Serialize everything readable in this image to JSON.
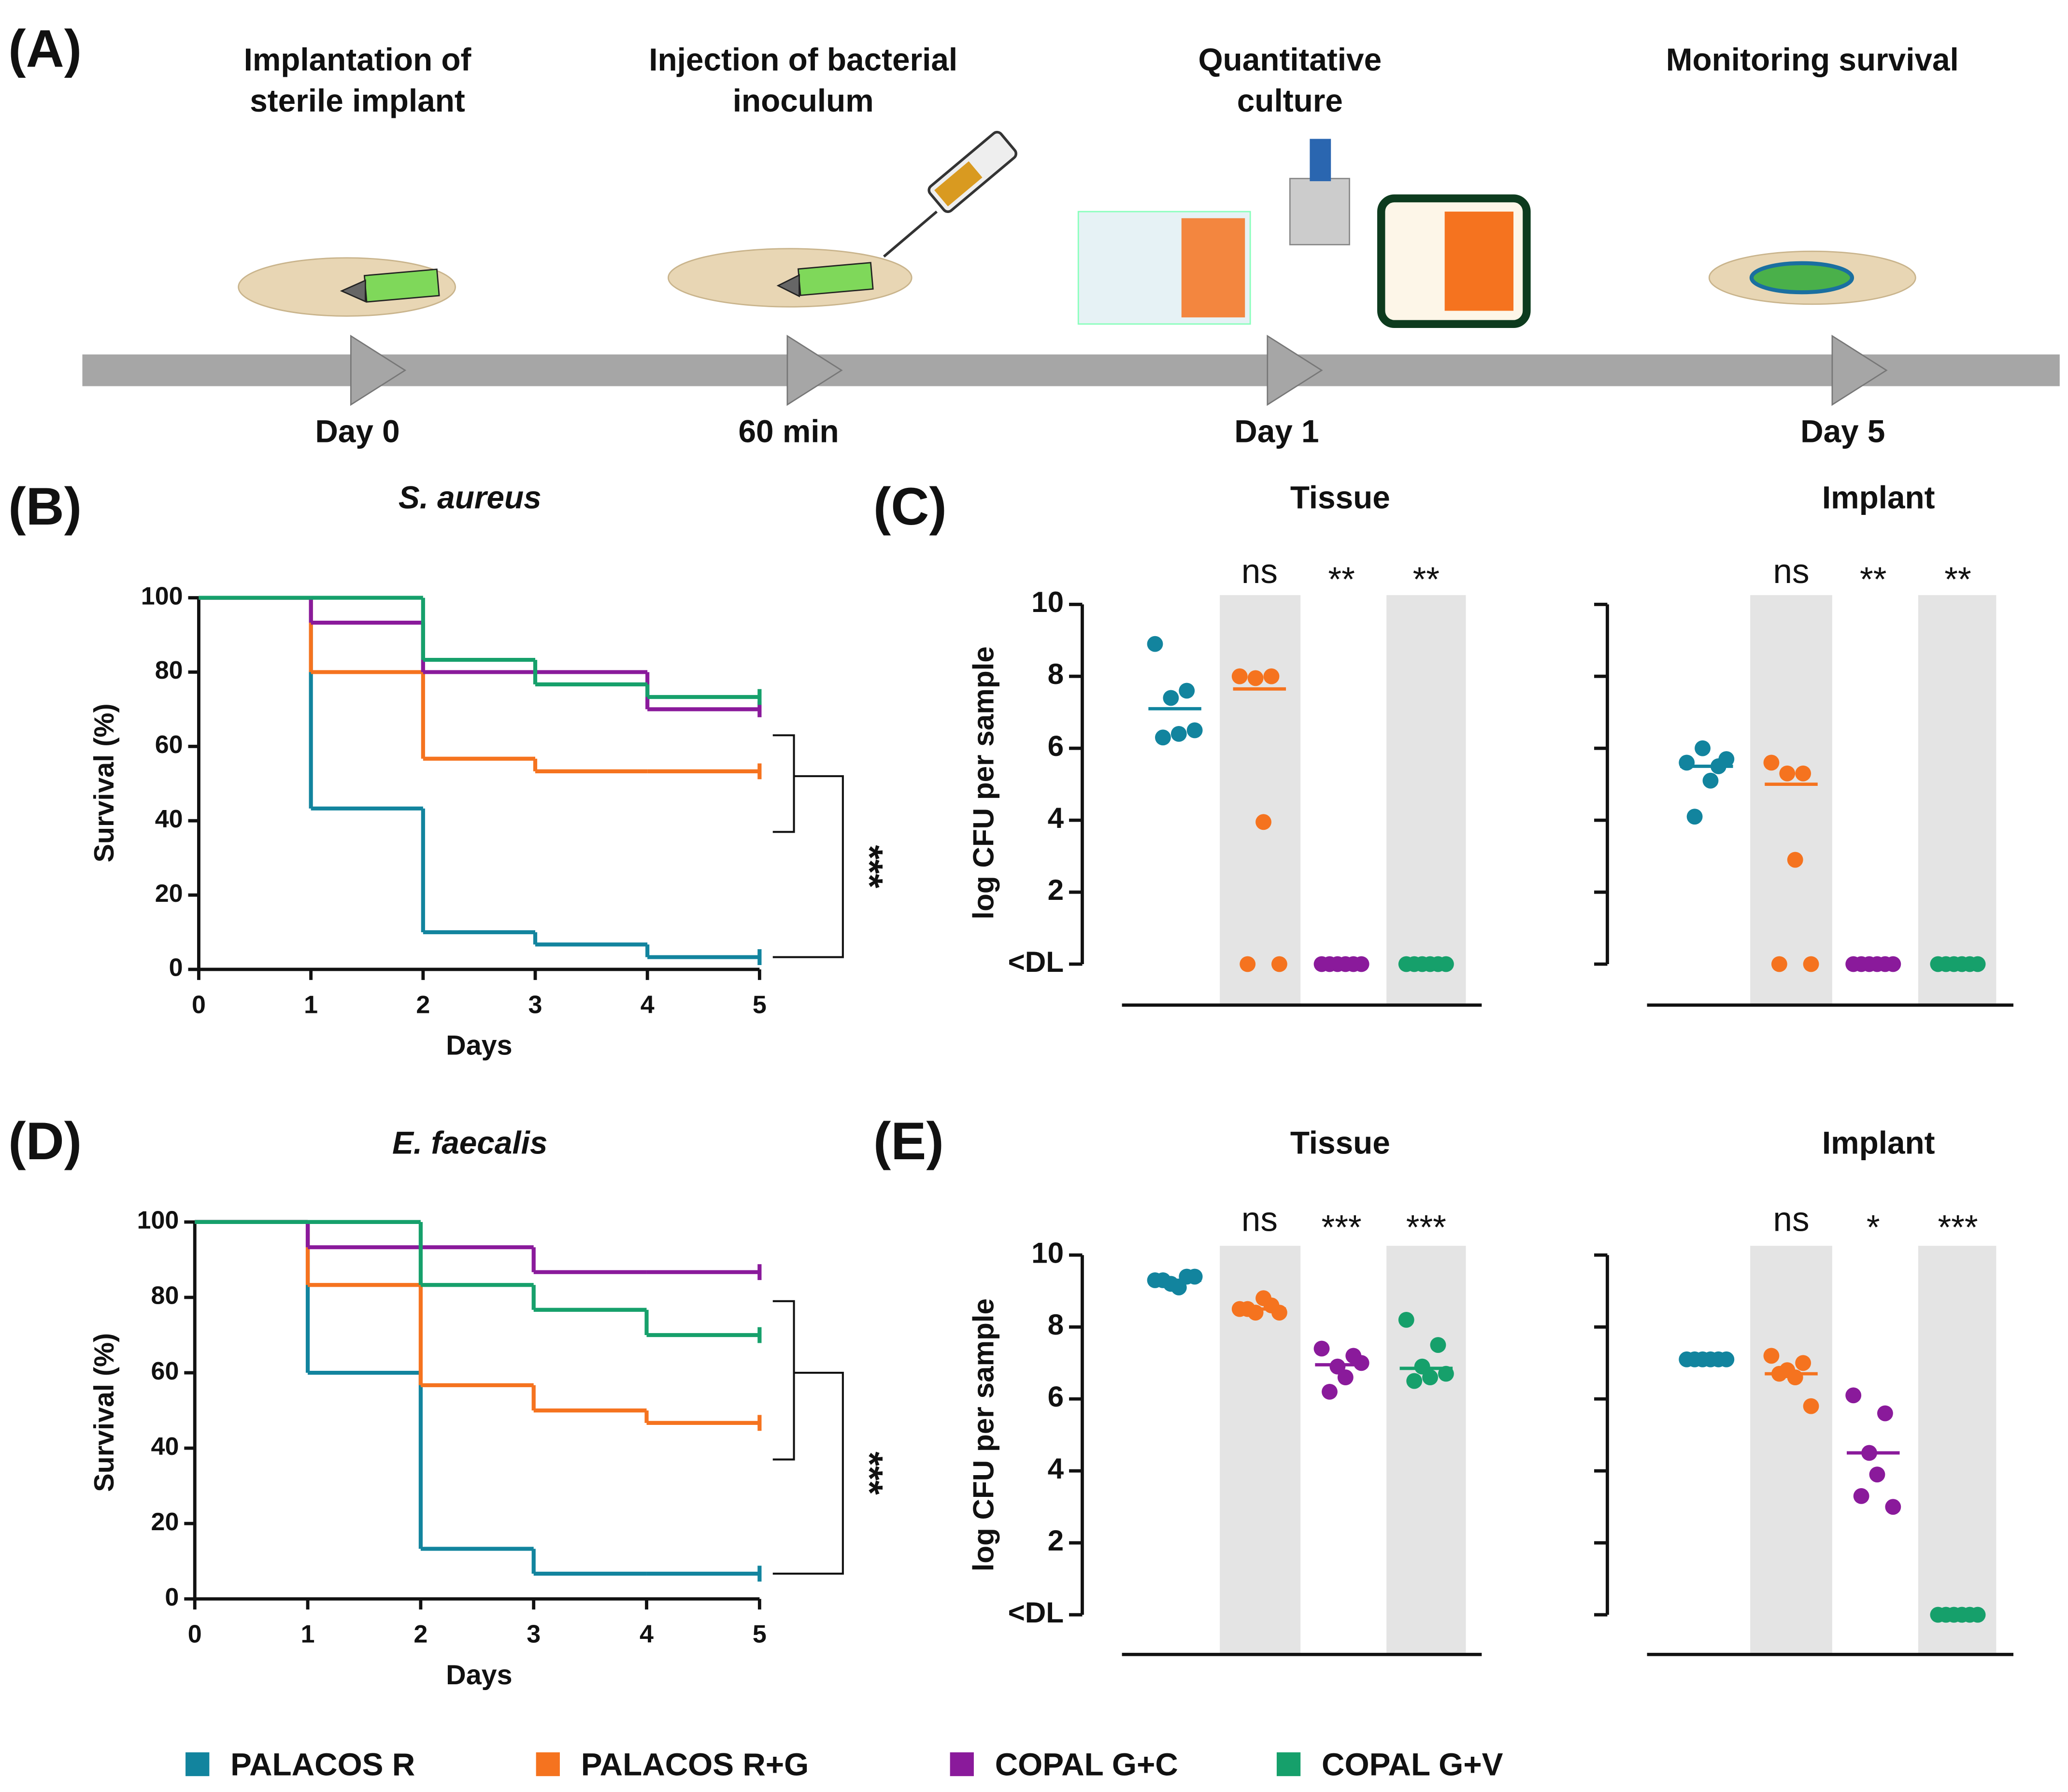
{
  "panel_labels": [
    "(A)",
    "(B)",
    "(C)",
    "(D)",
    "(E)"
  ],
  "timeline": {
    "steps": [
      {
        "title": [
          "Implantation of",
          "sterile implant"
        ],
        "time": "Day 0"
      },
      {
        "title": [
          "Injection of bacterial",
          "inoculum"
        ],
        "time": "60 min"
      },
      {
        "title": [
          "Quantitative",
          "culture"
        ],
        "time": "Day 1"
      },
      {
        "title": [
          "Monitoring survival"
        ],
        "time": "Day 5"
      }
    ]
  },
  "legend": [
    {
      "name": "PALACOS R",
      "color": "#12849e"
    },
    {
      "name": "PALACOS R+G",
      "color": "#f5731f"
    },
    {
      "name": "COPAL G+C",
      "color": "#8a1a9b"
    },
    {
      "name": "COPAL G+V",
      "color": "#16a06b"
    }
  ],
  "chart_data": [
    {
      "type": "step",
      "title": "S. aureus",
      "xlabel": "Days",
      "ylabel": "Survival (%)",
      "annotation": "***",
      "x": [
        0,
        1,
        2,
        3,
        4,
        5
      ],
      "xlim": [
        0,
        5
      ],
      "xticks": [
        0,
        1,
        2,
        3,
        4,
        5
      ],
      "ylim": [
        0,
        100
      ],
      "yticks": [
        0,
        20,
        40,
        60,
        80,
        100
      ],
      "series": [
        {
          "color": "#12849e",
          "values": [
            100,
            43.3,
            10,
            6.7,
            3.3,
            3.3
          ]
        },
        {
          "color": "#f5731f",
          "values": [
            100,
            80,
            56.7,
            53.3,
            53.3,
            53.3
          ]
        },
        {
          "color": "#8a1a9b",
          "values": [
            100,
            93.3,
            80,
            80,
            70,
            70
          ]
        },
        {
          "color": "#16a06b",
          "values": [
            100,
            100,
            83.3,
            76.7,
            73.3,
            73.3
          ]
        }
      ]
    },
    {
      "type": "strip",
      "title": "Tissue",
      "ylabel": "log CFU per sample",
      "ylim": [
        0,
        10
      ],
      "yticks": [
        {
          "value": 0,
          "label": "<DL"
        },
        2,
        4,
        6,
        8,
        10
      ],
      "ytick_labels": true,
      "series": [
        {
          "color": "#12849e",
          "values": [
            8.9,
            7.6,
            7.4,
            6.4,
            6.3,
            6.5
          ],
          "center": 7.1
        },
        {
          "color": "#f5731f",
          "values": [
            8.0,
            8.0,
            7.95,
            3.95,
            0,
            0
          ],
          "center": 7.65,
          "label": "ns"
        },
        {
          "color": "#8a1a9b",
          "values": [
            0,
            0,
            0,
            0,
            0,
            0
          ],
          "label": "**"
        },
        {
          "color": "#16a06b",
          "values": [
            0,
            0,
            0,
            0,
            0,
            0
          ],
          "label": "**"
        }
      ]
    },
    {
      "type": "strip",
      "title": "Implant",
      "ylim": [
        0,
        10
      ],
      "yticks": [
        0,
        2,
        4,
        6,
        8,
        10
      ],
      "ytick_labels": false,
      "series": [
        {
          "color": "#12849e",
          "values": [
            5.6,
            5.5,
            6.0,
            5.1,
            4.1,
            5.7
          ],
          "center": 5.5
        },
        {
          "color": "#f5731f",
          "values": [
            5.6,
            5.3,
            5.3,
            2.9,
            0,
            0
          ],
          "center": 5.0,
          "label": "ns"
        },
        {
          "color": "#8a1a9b",
          "values": [
            0,
            0,
            0,
            0,
            0,
            0
          ],
          "label": "**"
        },
        {
          "color": "#16a06b",
          "values": [
            0,
            0,
            0,
            0,
            0,
            0
          ],
          "label": "**"
        }
      ]
    },
    {
      "type": "step",
      "title": "E. faecalis",
      "xlabel": "Days",
      "ylabel": "Survival (%)",
      "annotation": "***",
      "x": [
        0,
        1,
        2,
        3,
        4,
        5
      ],
      "xlim": [
        0,
        5
      ],
      "xticks": [
        0,
        1,
        2,
        3,
        4,
        5
      ],
      "ylim": [
        0,
        100
      ],
      "yticks": [
        0,
        20,
        40,
        60,
        80,
        100
      ],
      "series": [
        {
          "color": "#12849e",
          "values": [
            100,
            60,
            13.3,
            6.7,
            6.7,
            6.7
          ]
        },
        {
          "color": "#f5731f",
          "values": [
            100,
            83.3,
            56.7,
            50,
            46.7,
            46.7
          ]
        },
        {
          "color": "#8a1a9b",
          "values": [
            100,
            93.3,
            93.3,
            86.7,
            86.7,
            86.7
          ]
        },
        {
          "color": "#16a06b",
          "values": [
            100,
            100,
            83.3,
            76.7,
            70,
            70
          ]
        }
      ]
    },
    {
      "type": "strip",
      "title": "Tissue",
      "ylabel": "log CFU per sample",
      "ylim": [
        0,
        10
      ],
      "yticks": [
        {
          "value": 0,
          "label": "<DL"
        },
        2,
        4,
        6,
        8,
        10
      ],
      "ytick_labels": true,
      "series": [
        {
          "color": "#12849e",
          "values": [
            9.3,
            9.4,
            9.2,
            9.1,
            9.3,
            9.4
          ],
          "center": 9.3
        },
        {
          "color": "#f5731f",
          "values": [
            8.5,
            8.6,
            8.4,
            8.8,
            8.5,
            8.4
          ],
          "center": 8.5,
          "label": "ns"
        },
        {
          "color": "#8a1a9b",
          "values": [
            7.4,
            7.2,
            6.9,
            6.6,
            6.2,
            7.0
          ],
          "center": 6.95,
          "label": "***"
        },
        {
          "color": "#16a06b",
          "values": [
            8.2,
            7.5,
            6.9,
            6.6,
            6.5,
            6.7
          ],
          "center": 6.85,
          "label": "***"
        }
      ]
    },
    {
      "type": "strip",
      "title": "Implant",
      "ylim": [
        0,
        10
      ],
      "yticks": [
        0,
        2,
        4,
        6,
        8,
        10
      ],
      "ytick_labels": false,
      "series": [
        {
          "color": "#12849e",
          "values": [
            7.1,
            7.1,
            7.1,
            7.1,
            7.1,
            7.1
          ],
          "center": 7.1
        },
        {
          "color": "#f5731f",
          "values": [
            7.2,
            7.0,
            6.8,
            6.6,
            6.7,
            5.8
          ],
          "center": 6.7,
          "label": "ns"
        },
        {
          "color": "#8a1a9b",
          "values": [
            6.1,
            5.6,
            4.5,
            3.9,
            3.3,
            3.0
          ],
          "center": 4.5,
          "label": "*"
        },
        {
          "color": "#16a06b",
          "values": [
            0,
            0,
            0,
            0,
            0,
            0
          ],
          "label": "***"
        }
      ]
    }
  ]
}
